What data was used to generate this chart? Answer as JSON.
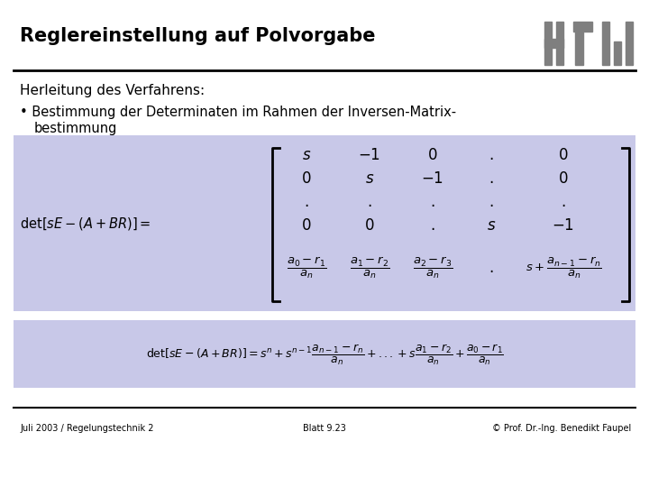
{
  "title": "Reglereinstellung auf Polvorgabe",
  "bg_color": "#ffffff",
  "blue_box_color": "#c8c8e8",
  "header_line_color": "#000000",
  "footer_line_color": "#000000",
  "text_color": "#000000",
  "gray_logo_color": "#7f7f7f",
  "subtitle": "Herleitung des Verfahrens:",
  "bullet_line1": "• Bestimmung der Determinaten im Rahmen der Inversen-Matrixbestimmung",
  "bullet_line2": "   bestimmung",
  "footer_left": "Juli 2003 / Regelungstechnik 2",
  "footer_center": "Blatt 9.23",
  "footer_right": "© Prof. Dr.-Ing. Benedikt Faupel"
}
